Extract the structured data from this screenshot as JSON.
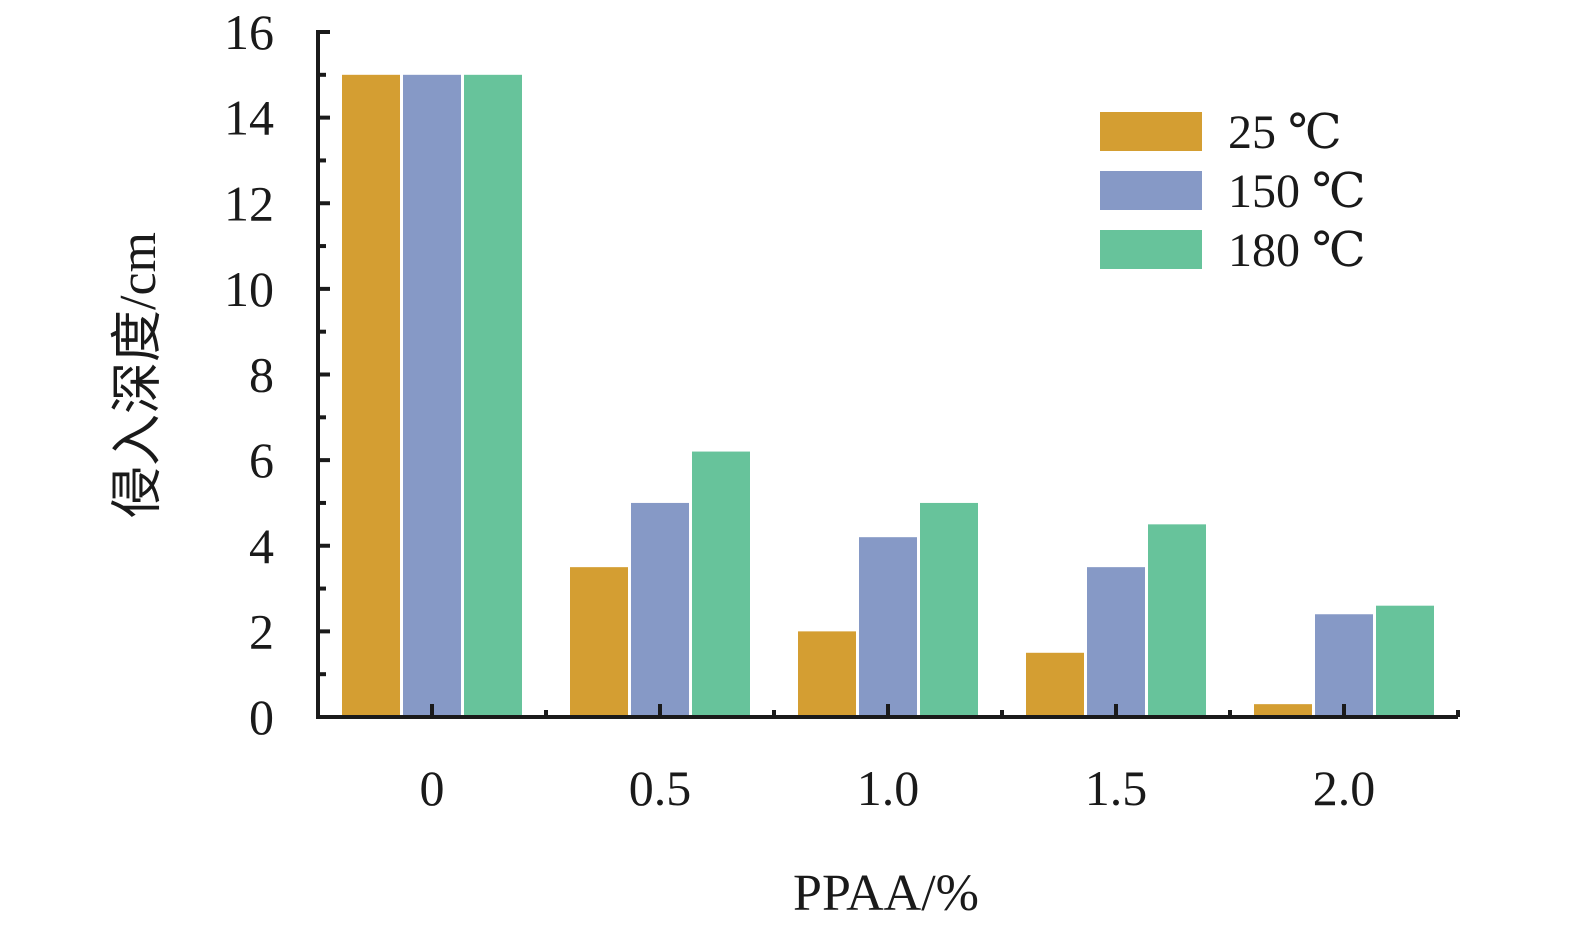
{
  "chart_data": {
    "type": "bar",
    "xlabel": "PPAA/%",
    "ylabel": "侵入深度/cm",
    "categories": [
      "0",
      "0.5",
      "1.0",
      "1.5",
      "2.0"
    ],
    "series": [
      {
        "name": "25 ℃",
        "color": "#D49E32",
        "values": [
          15,
          3.5,
          2.0,
          1.5,
          0.3
        ]
      },
      {
        "name": "150 ℃",
        "color": "#8699C6",
        "values": [
          15,
          5.0,
          4.2,
          3.5,
          2.4
        ]
      },
      {
        "name": "180 ℃",
        "color": "#67C39B",
        "values": [
          15,
          6.2,
          5.0,
          4.5,
          2.6
        ]
      }
    ],
    "ylim": [
      0,
      16
    ],
    "y_ticks": [
      0,
      2,
      4,
      6,
      8,
      10,
      12,
      14,
      16
    ],
    "grid": false,
    "legend_position": "top-right"
  }
}
